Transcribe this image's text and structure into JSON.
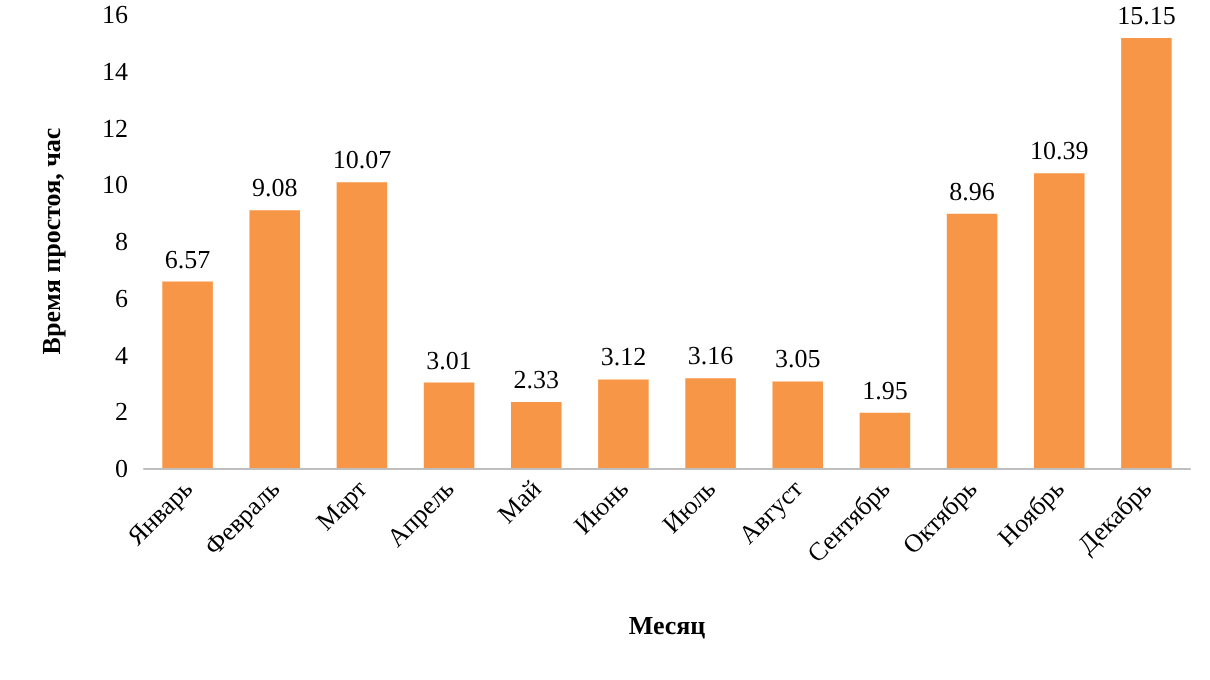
{
  "chart_data": {
    "type": "bar",
    "xlabel": "Месяц",
    "ylabel": "Время простоя, час",
    "categories": [
      "Январь",
      "Февраль",
      "Март",
      "Апрель",
      "Май",
      "Июнь",
      "Июль",
      "Август",
      "Сентябрь",
      "Октябрь",
      "Ноябрь",
      "Декабрь"
    ],
    "values": [
      6.57,
      9.08,
      10.07,
      3.01,
      2.33,
      3.12,
      3.16,
      3.05,
      1.95,
      8.96,
      10.39,
      15.15
    ],
    "color": "#f79646",
    "ylim": [
      0,
      16
    ],
    "yticks": [
      0,
      2,
      4,
      6,
      8,
      10,
      12,
      14,
      16
    ],
    "grid": false,
    "data_labels": true
  }
}
